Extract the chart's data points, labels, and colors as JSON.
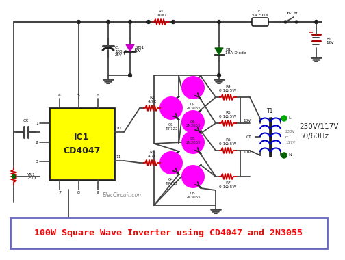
{
  "title": "100W Square Wave Inverter using CD4047 and 2N3055",
  "title_color": "#ff0000",
  "title_bg": "#ffffff",
  "title_border": "#6666bb",
  "bg_color": "#ffffff",
  "ic_color": "#ffff00",
  "ic_label": "IC1\nCD4047",
  "transistor_color": "#ff00ff",
  "wire_color": "#444444",
  "watermark": "ElecCircuit.com",
  "output_label": "230V/117V\n50/60Hz",
  "gray": "#666666",
  "red": "#cc0000",
  "blue": "#0000cc",
  "green": "#008800"
}
